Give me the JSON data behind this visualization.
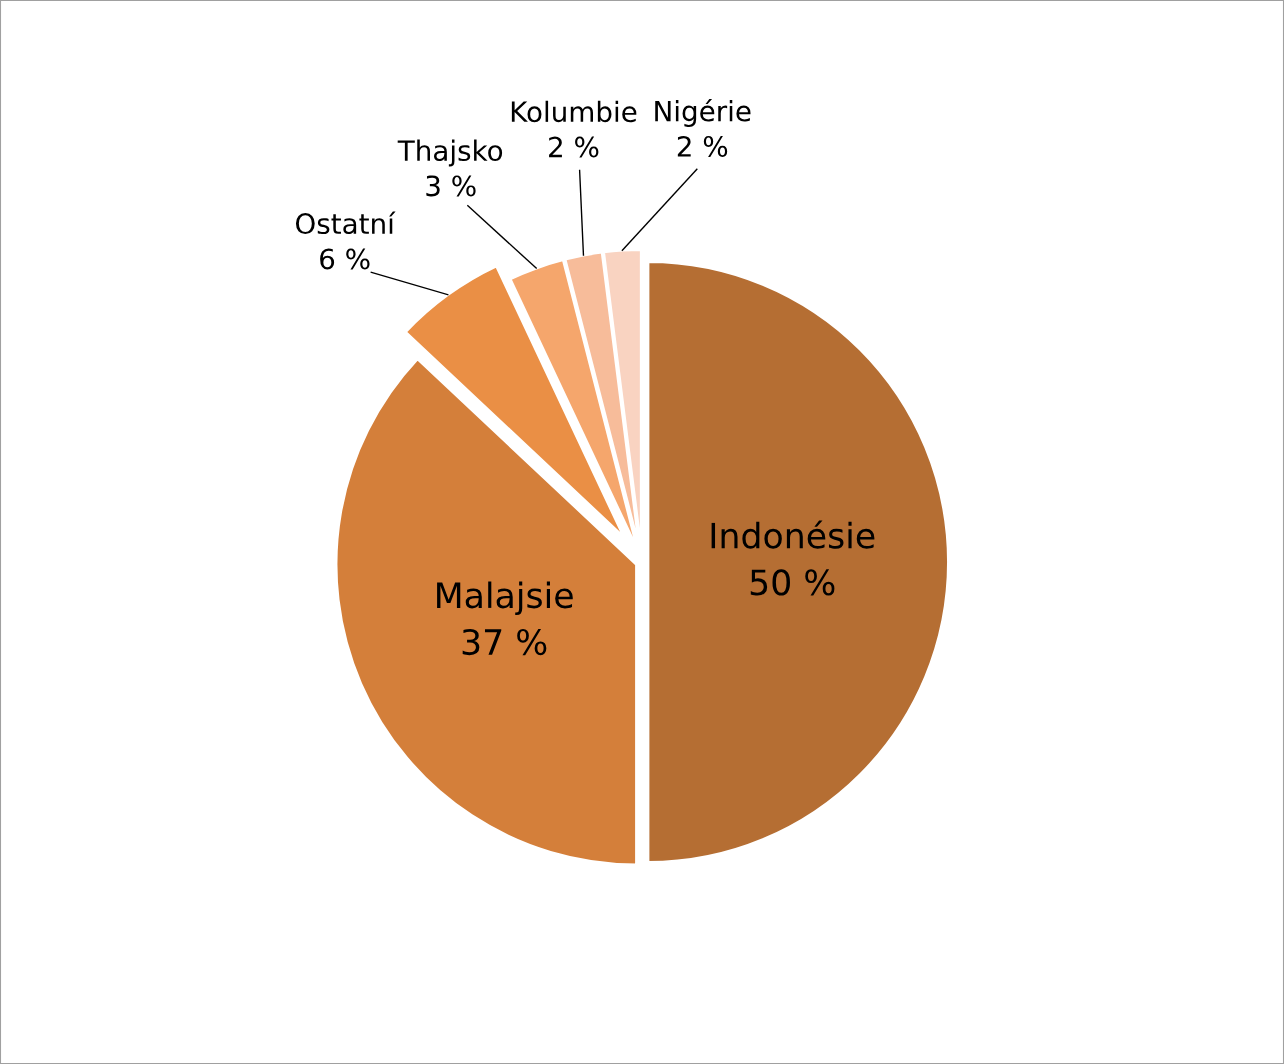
{
  "chart_data": {
    "type": "pie",
    "categories": [
      "Indonésie",
      "Malajsie",
      "Ostatní",
      "Thajsko",
      "Kolumbie",
      "Nigérie"
    ],
    "values": [
      50,
      37,
      6,
      3,
      2,
      2
    ],
    "value_labels": [
      "50 %",
      "37 %",
      "6 %",
      "3 %",
      "2 %",
      "2 %"
    ],
    "colors": [
      "#b56e33",
      "#d47f3a",
      "#ea8f45",
      "#f5a66c",
      "#f7bc9a",
      "#f9d3c1"
    ]
  }
}
